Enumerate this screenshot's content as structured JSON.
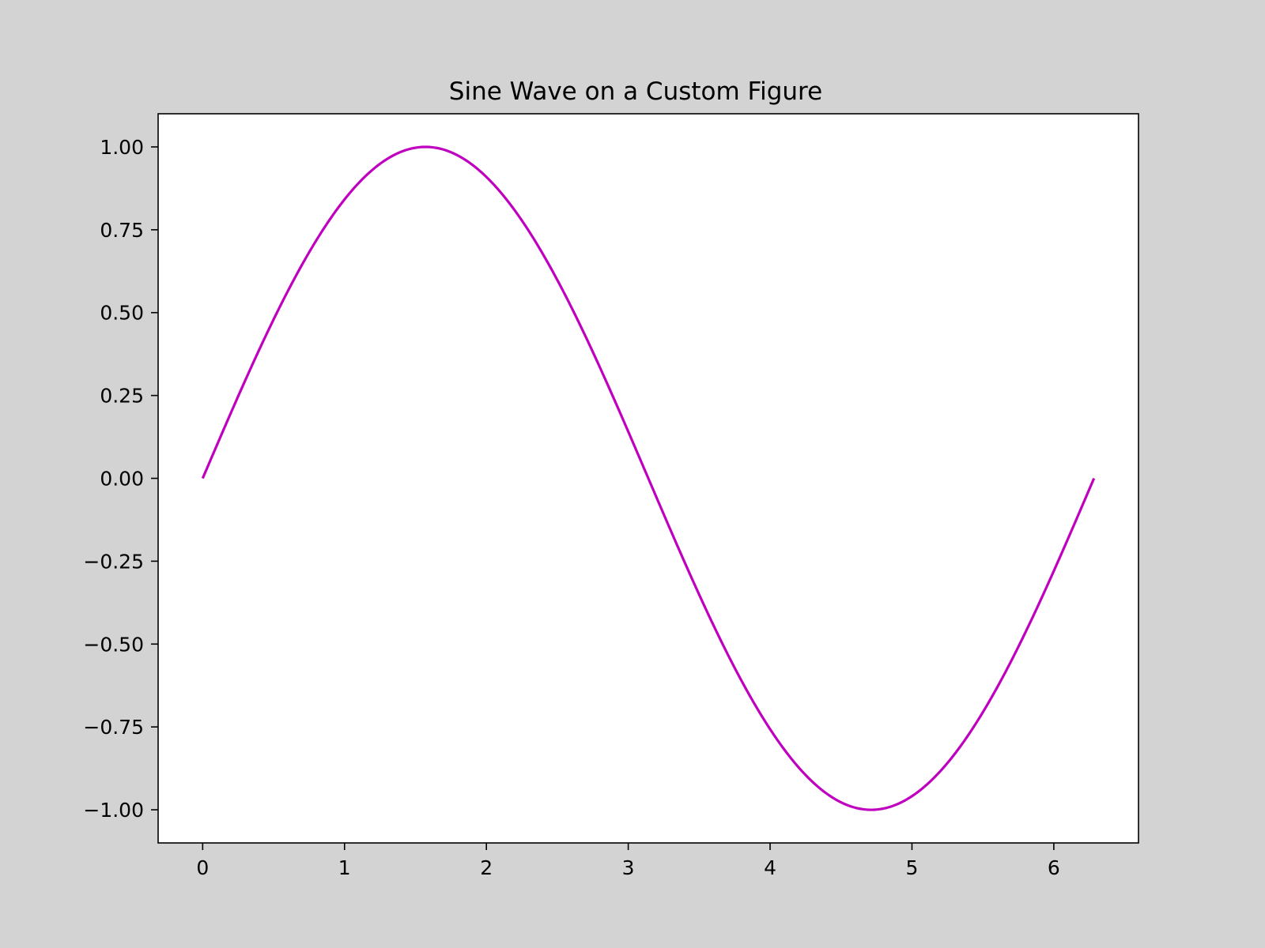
{
  "chart_data": {
    "type": "line",
    "title": "Sine Wave on a Custom Figure",
    "xlabel": "",
    "ylabel": "",
    "xlim": [
      -0.314,
      6.597
    ],
    "ylim": [
      -1.1,
      1.1
    ],
    "grid": false,
    "xticks": [
      0,
      1,
      2,
      3,
      4,
      5,
      6
    ],
    "xtick_labels": [
      "0",
      "1",
      "2",
      "3",
      "4",
      "5",
      "6"
    ],
    "yticks": [
      1.0,
      0.75,
      0.5,
      0.25,
      0.0,
      -0.25,
      -0.5,
      -0.75,
      -1.0
    ],
    "ytick_labels": [
      "1.00",
      "0.75",
      "0.50",
      "0.25",
      "0.00",
      "−0.25",
      "−0.50",
      "−0.75",
      "−1.00"
    ],
    "series": [
      {
        "function": "sin(x)",
        "x_range": [
          0,
          6.2832
        ],
        "color": "#bf00bf"
      }
    ]
  },
  "colors": {
    "figure_background": "#d3d3d3",
    "axes_background": "#ffffff",
    "line": "#bf00bf"
  }
}
